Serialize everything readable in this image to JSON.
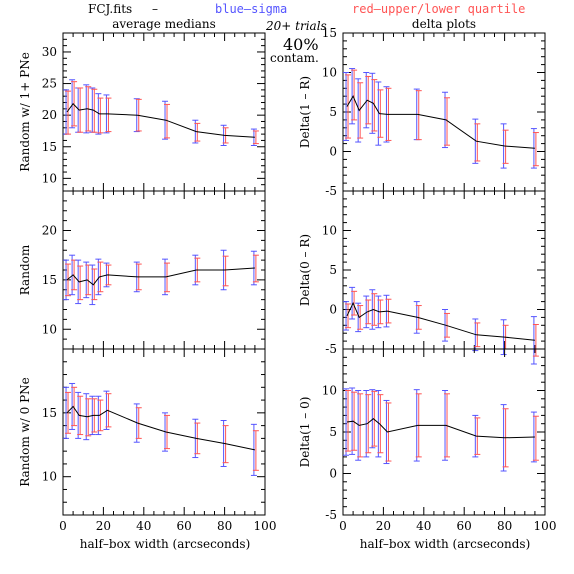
{
  "header": {
    "file": "FCJ.fits",
    "dash": "–",
    "blue_label": "blue–sigma",
    "red_label": "red–upper/lower quartile",
    "trials": "20+ trials",
    "contam_pct": "40%",
    "contam_word": "contam."
  },
  "colors": {
    "blue": "#5555ff",
    "red": "#ff5555",
    "line": "#000000"
  },
  "x_label": "half–box width (arcseconds)",
  "x_ticks": [
    "0",
    "20",
    "40",
    "60",
    "80",
    "100"
  ],
  "chart_data": [
    {
      "id": "left-top",
      "type": "line",
      "title": "average medians",
      "ylabel": "Random w/ 1+ PNe",
      "xlim": [
        0,
        100
      ],
      "ylim": [
        8,
        33
      ],
      "yticks": [
        10,
        15,
        20,
        25,
        30
      ],
      "x": [
        2,
        5,
        8,
        12,
        15,
        18,
        22,
        37,
        51,
        66,
        80,
        95
      ],
      "y": [
        20.5,
        21.8,
        20.8,
        21.0,
        20.8,
        20.2,
        20.2,
        20.0,
        19.2,
        17.4,
        16.8,
        16.5
      ],
      "sigma": [
        3.5,
        3.8,
        3.5,
        3.8,
        3.5,
        3.2,
        3.0,
        2.6,
        3.0,
        1.8,
        1.6,
        1.3
      ],
      "qlo": [
        3.5,
        3.5,
        3.5,
        3.5,
        3.5,
        3.0,
        2.8,
        2.5,
        2.8,
        1.5,
        1.2,
        1.0
      ],
      "qhi": [
        3.3,
        3.5,
        3.5,
        3.5,
        3.3,
        2.5,
        2.5,
        2.5,
        2.5,
        1.3,
        1.2,
        1.0
      ]
    },
    {
      "id": "right-top",
      "type": "line",
      "title": "delta plots",
      "ylabel": "Delta(1 – R)",
      "xlim": [
        0,
        100
      ],
      "ylim": [
        -5,
        15
      ],
      "yticks": [
        -5,
        0,
        5,
        10,
        15
      ],
      "x": [
        2,
        5,
        8,
        12,
        15,
        18,
        22,
        37,
        51,
        66,
        80,
        95
      ],
      "y": [
        5.7,
        7.0,
        5.2,
        6.5,
        6.1,
        4.8,
        4.7,
        4.7,
        4.0,
        1.3,
        0.7,
        0.4
      ],
      "sigma": [
        4.3,
        3.5,
        4.0,
        3.5,
        3.8,
        4.0,
        3.5,
        3.2,
        3.5,
        2.8,
        2.8,
        2.5
      ],
      "qlo": [
        4.0,
        3.0,
        3.5,
        3.0,
        3.5,
        3.0,
        3.3,
        3.2,
        3.2,
        2.5,
        2.2,
        2.2
      ],
      "qhi": [
        4.0,
        3.3,
        3.5,
        3.0,
        3.0,
        3.0,
        3.3,
        3.0,
        2.8,
        2.2,
        2.0,
        2.0
      ]
    },
    {
      "id": "left-mid",
      "type": "line",
      "title": "",
      "ylabel": "Random",
      "xlim": [
        0,
        100
      ],
      "ylim": [
        8,
        24
      ],
      "yticks": [
        10,
        15,
        20
      ],
      "x": [
        2,
        5,
        8,
        12,
        15,
        18,
        22,
        37,
        51,
        66,
        80,
        95
      ],
      "y": [
        15.0,
        15.5,
        14.8,
        15.0,
        14.5,
        15.3,
        15.5,
        15.3,
        15.3,
        16.0,
        16.0,
        16.2
      ],
      "sigma": [
        2.0,
        2.0,
        2.2,
        1.8,
        2.0,
        1.8,
        1.2,
        1.5,
        1.8,
        1.5,
        2.0,
        1.7
      ],
      "qlo": [
        1.6,
        1.5,
        1.8,
        1.5,
        1.5,
        1.5,
        1.0,
        1.3,
        1.5,
        1.2,
        1.6,
        1.4
      ],
      "qhi": [
        1.6,
        1.5,
        1.6,
        1.5,
        1.6,
        1.5,
        1.0,
        1.3,
        1.4,
        1.2,
        1.4,
        1.3
      ]
    },
    {
      "id": "right-mid",
      "type": "line",
      "title": "",
      "ylabel": "Delta(0 – R)",
      "xlim": [
        0,
        100
      ],
      "ylim": [
        -5,
        15
      ],
      "yticks": [
        -5,
        0,
        5,
        10
      ],
      "x": [
        2,
        5,
        8,
        12,
        15,
        18,
        22,
        37,
        51,
        66,
        80,
        95
      ],
      "y": [
        -0.8,
        0.8,
        -1.0,
        -0.3,
        0.0,
        -0.3,
        -0.2,
        -1.0,
        -2.0,
        -3.2,
        -3.5,
        -3.9
      ],
      "sigma": [
        1.8,
        2.0,
        1.8,
        2.0,
        2.5,
        2.0,
        2.0,
        2.0,
        2.0,
        2.0,
        2.2,
        3.0
      ],
      "qlo": [
        1.5,
        1.5,
        1.5,
        1.5,
        2.0,
        1.5,
        1.5,
        1.5,
        1.5,
        1.5,
        1.5,
        2.0
      ],
      "qhi": [
        1.5,
        1.5,
        1.5,
        1.5,
        2.0,
        1.5,
        1.5,
        1.5,
        1.5,
        1.5,
        1.5,
        2.0
      ]
    },
    {
      "id": "left-bot",
      "type": "line",
      "title": "",
      "ylabel": "Random w/ 0 PNe",
      "xlim": [
        0,
        100
      ],
      "ylim": [
        7,
        20
      ],
      "yticks": [
        10,
        15
      ],
      "x": [
        2,
        5,
        8,
        12,
        15,
        18,
        22,
        37,
        51,
        66,
        80,
        95
      ],
      "y": [
        15.0,
        15.5,
        14.8,
        14.7,
        14.8,
        14.8,
        15.2,
        14.2,
        13.5,
        13.0,
        12.6,
        12.1
      ],
      "sigma": [
        2.0,
        1.8,
        1.8,
        1.8,
        1.5,
        1.5,
        1.5,
        1.5,
        1.5,
        1.5,
        1.8,
        2.0
      ],
      "qlo": [
        1.6,
        1.5,
        1.5,
        1.5,
        1.3,
        1.2,
        1.3,
        1.2,
        1.3,
        1.2,
        1.5,
        1.6
      ],
      "qhi": [
        1.6,
        1.5,
        1.5,
        1.4,
        1.3,
        1.2,
        1.3,
        1.2,
        1.3,
        1.2,
        1.4,
        1.5
      ]
    },
    {
      "id": "right-bot",
      "type": "line",
      "title": "",
      "ylabel": "Delta(1 – 0)",
      "xlim": [
        0,
        100
      ],
      "ylim": [
        -5,
        15
      ],
      "yticks": [
        -5,
        0,
        5,
        10
      ],
      "x": [
        2,
        5,
        8,
        12,
        15,
        18,
        22,
        37,
        51,
        66,
        80,
        95
      ],
      "y": [
        6.2,
        6.3,
        5.8,
        6.0,
        6.6,
        6.0,
        5.0,
        5.8,
        5.8,
        4.5,
        4.3,
        4.4
      ],
      "sigma": [
        4.0,
        4.0,
        4.2,
        4.0,
        3.5,
        4.0,
        3.8,
        4.3,
        4.2,
        2.5,
        4.0,
        3.0
      ],
      "qlo": [
        3.5,
        3.5,
        3.8,
        3.5,
        3.3,
        3.5,
        3.5,
        3.8,
        3.8,
        2.2,
        3.5,
        2.8
      ],
      "qhi": [
        3.8,
        3.5,
        3.8,
        3.5,
        3.3,
        3.5,
        3.5,
        3.8,
        3.8,
        2.2,
        3.5,
        2.5
      ]
    }
  ]
}
